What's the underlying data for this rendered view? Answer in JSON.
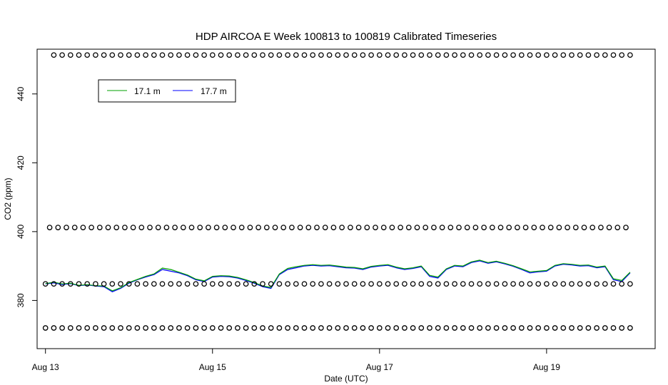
{
  "chart_data": {
    "type": "line",
    "title": "HDP AIRCOA E  Week 100813 to 100819  Calibrated Timeseries",
    "xlabel": "Date (UTC)",
    "ylabel": "CO2 (ppm)",
    "xlim": [
      -0.1,
      7.3
    ],
    "ylim": [
      366,
      453
    ],
    "x_unit": "days since Aug 13 00:00 UTC",
    "x_ticks": [
      {
        "value": 0,
        "label": "Aug 13"
      },
      {
        "value": 2,
        "label": "Aug 15"
      },
      {
        "value": 4,
        "label": "Aug 17"
      },
      {
        "value": 6,
        "label": "Aug 19"
      }
    ],
    "y_ticks": [
      {
        "value": 380,
        "label": "380"
      },
      {
        "value": 400,
        "label": "400"
      },
      {
        "value": 420,
        "label": "420"
      },
      {
        "value": 440,
        "label": "440"
      }
    ],
    "grid": false,
    "legend": {
      "placement": "top-left",
      "entries": [
        {
          "label": "17.1 m",
          "color": "#00a000"
        },
        {
          "label": "17.7 m",
          "color": "#0000ff"
        }
      ]
    },
    "series": [
      {
        "name": "17.7 m",
        "color": "#0000ff",
        "style": "line",
        "x": [
          0.0,
          0.1,
          0.2,
          0.3,
          0.4,
          0.5,
          0.6,
          0.7,
          0.8,
          0.9,
          1.0,
          1.1,
          1.2,
          1.3,
          1.4,
          1.5,
          1.6,
          1.7,
          1.8,
          1.9,
          2.0,
          2.1,
          2.2,
          2.3,
          2.4,
          2.5,
          2.6,
          2.7,
          2.8,
          2.9,
          3.0,
          3.1,
          3.2,
          3.3,
          3.4,
          3.5,
          3.6,
          3.7,
          3.8,
          3.9,
          4.0,
          4.1,
          4.2,
          4.3,
          4.4,
          4.5,
          4.6,
          4.7,
          4.8,
          4.9,
          5.0,
          5.1,
          5.2,
          5.3,
          5.4,
          5.5,
          5.6,
          5.7,
          5.8,
          5.9,
          6.0,
          6.1,
          6.2,
          6.3,
          6.4,
          6.5,
          6.6,
          6.7,
          6.8,
          6.9,
          7.0
        ],
        "values": [
          384.8,
          385.1,
          384.6,
          384.9,
          384.3,
          384.5,
          384.2,
          384.0,
          382.5,
          383.5,
          385.0,
          386.0,
          386.8,
          387.5,
          389.0,
          388.5,
          388.0,
          387.2,
          386.0,
          385.5,
          386.8,
          387.0,
          386.9,
          386.5,
          385.8,
          385.0,
          384.0,
          383.5,
          387.5,
          389.0,
          389.5,
          390.0,
          390.2,
          390.0,
          390.1,
          389.8,
          389.5,
          389.4,
          389.0,
          389.7,
          390.0,
          390.2,
          389.5,
          389.0,
          389.3,
          389.8,
          387.0,
          386.5,
          389.0,
          390.0,
          389.8,
          391.0,
          391.5,
          390.8,
          391.2,
          390.6,
          389.9,
          389.0,
          388.0,
          388.3,
          388.5,
          390.0,
          390.5,
          390.3,
          390.0,
          390.1,
          389.5,
          389.8,
          386.0,
          385.5,
          388.0
        ]
      },
      {
        "name": "17.1 m",
        "color": "#00a000",
        "style": "line",
        "x": [
          0.0,
          0.1,
          0.2,
          0.3,
          0.4,
          0.5,
          0.6,
          0.7,
          0.8,
          0.9,
          1.0,
          1.1,
          1.2,
          1.3,
          1.4,
          1.5,
          1.6,
          1.7,
          1.8,
          1.9,
          2.0,
          2.1,
          2.2,
          2.3,
          2.4,
          2.5,
          2.6,
          2.7,
          2.8,
          2.9,
          3.0,
          3.1,
          3.2,
          3.3,
          3.4,
          3.5,
          3.6,
          3.7,
          3.8,
          3.9,
          4.0,
          4.1,
          4.2,
          4.3,
          4.4,
          4.5,
          4.6,
          4.7,
          4.8,
          4.9,
          5.0,
          5.1,
          5.2,
          5.3,
          5.4,
          5.5,
          5.6,
          5.7,
          5.8,
          5.9,
          6.0,
          6.1,
          6.2,
          6.3,
          6.4,
          6.5,
          6.6,
          6.7,
          6.8,
          6.9,
          7.0
        ],
        "values": [
          384.9,
          385.3,
          384.8,
          385.0,
          384.4,
          384.6,
          384.3,
          384.2,
          382.8,
          383.7,
          385.2,
          386.1,
          387.0,
          387.7,
          389.4,
          389.0,
          388.2,
          387.4,
          386.2,
          385.7,
          387.0,
          387.2,
          387.1,
          386.7,
          386.0,
          385.2,
          384.2,
          383.8,
          387.7,
          389.3,
          389.8,
          390.2,
          390.4,
          390.2,
          390.3,
          390.0,
          389.7,
          389.6,
          389.2,
          389.9,
          390.2,
          390.4,
          389.7,
          389.2,
          389.5,
          390.0,
          387.3,
          386.8,
          389.2,
          390.2,
          390.0,
          391.2,
          391.7,
          391.0,
          391.4,
          390.8,
          390.1,
          389.2,
          388.3,
          388.5,
          388.7,
          390.2,
          390.7,
          390.5,
          390.2,
          390.3,
          389.7,
          390.0,
          386.3,
          385.8,
          388.2
        ]
      },
      {
        "name": "",
        "color": "#000000",
        "style": "points",
        "level": 451.3,
        "x_start": 0.1,
        "x_end": 7.0,
        "x_step": 0.1,
        "count": 70
      },
      {
        "name": "",
        "color": "#000000",
        "style": "points",
        "level": 401.2,
        "x_start": 0.05,
        "x_end": 7.0,
        "x_step": 0.1,
        "count": 70
      },
      {
        "name": "",
        "color": "#000000",
        "style": "points",
        "level": 384.8,
        "x_start": 0.0,
        "x_end": 7.0,
        "x_step": 0.1,
        "count": 71
      },
      {
        "name": "",
        "color": "#000000",
        "style": "points",
        "level": 372.0,
        "x_start": 0.0,
        "x_end": 7.0,
        "x_step": 0.1,
        "count": 71
      }
    ]
  }
}
